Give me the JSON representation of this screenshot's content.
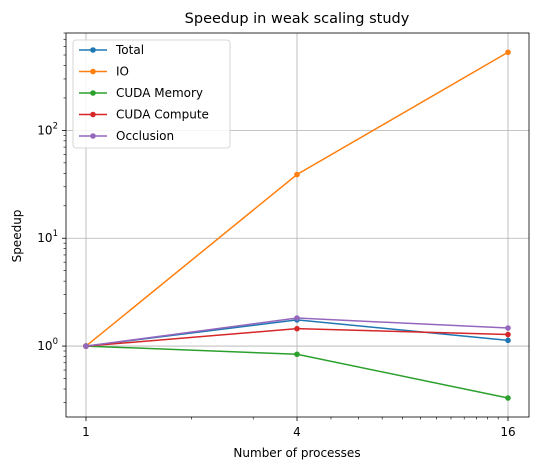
{
  "chart_data": {
    "type": "line",
    "title": "Speedup in weak scaling study",
    "xlabel": "Number of processes",
    "ylabel": "Speedup",
    "x_scale": "log",
    "y_scale": "log",
    "x": [
      1,
      4,
      16
    ],
    "x_tick_labels": [
      "1",
      "4",
      "16"
    ],
    "y_tick_labels": [
      {
        "base": "10",
        "exp": "0",
        "value": 1
      },
      {
        "base": "10",
        "exp": "1",
        "value": 10
      },
      {
        "base": "10",
        "exp": "2",
        "value": 100
      }
    ],
    "ylim": [
      0.22,
      800
    ],
    "grid": true,
    "legend_position": "upper-left",
    "series": [
      {
        "name": "Total",
        "color": "#1f77b4",
        "values": [
          1.0,
          1.75,
          1.13
        ]
      },
      {
        "name": "IO",
        "color": "#ff7f0e",
        "values": [
          1.0,
          39,
          530
        ]
      },
      {
        "name": "CUDA Memory",
        "color": "#2ca02c",
        "values": [
          1.0,
          0.84,
          0.33
        ]
      },
      {
        "name": "CUDA Compute",
        "color": "#d62728",
        "values": [
          1.0,
          1.45,
          1.28
        ]
      },
      {
        "name": "Occlusion",
        "color": "#9467bd",
        "values": [
          1.0,
          1.82,
          1.47
        ]
      }
    ]
  }
}
